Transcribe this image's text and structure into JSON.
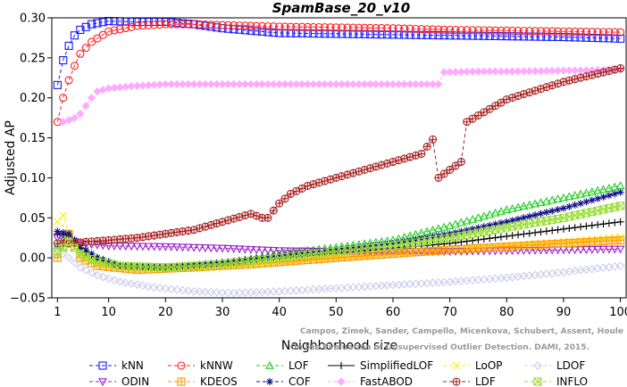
{
  "chart_data": {
    "type": "line",
    "title": "SpamBase_20_v10",
    "xlabel": "Neighborhood size",
    "ylabel": "Adjusted AP",
    "xlim": [
      0,
      101
    ],
    "ylim": [
      -0.05,
      0.3
    ],
    "xticks": [
      1,
      10,
      20,
      30,
      40,
      50,
      60,
      70,
      80,
      90,
      100
    ],
    "yticks": [
      -0.05,
      0.0,
      0.05,
      0.1,
      0.15,
      0.2,
      0.25,
      0.3
    ],
    "ytick_labels": [
      "−0.05",
      "0.00",
      "0.05",
      "0.10",
      "0.15",
      "0.20",
      "0.25",
      "0.30"
    ],
    "legend_position": "bottom",
    "watermark": [
      "Campos, Zimek, Sander, Campello, Micenkova, Schubert, Assent, Houle",
      "On the Evaluation of Unsupervised Outlier Detection. DAMI, 2015."
    ],
    "series": [
      {
        "name": "kNN",
        "color": "#1a1aff",
        "marker": "square",
        "dashed": true,
        "knots": [
          [
            1,
            0.216
          ],
          [
            2,
            0.247
          ],
          [
            3,
            0.265
          ],
          [
            4,
            0.278
          ],
          [
            5,
            0.285
          ],
          [
            7,
            0.292
          ],
          [
            10,
            0.296
          ],
          [
            15,
            0.295
          ],
          [
            20,
            0.295
          ],
          [
            25,
            0.292
          ],
          [
            30,
            0.287
          ],
          [
            40,
            0.281
          ],
          [
            50,
            0.28
          ],
          [
            60,
            0.279
          ],
          [
            70,
            0.278
          ],
          [
            80,
            0.277
          ],
          [
            90,
            0.276
          ],
          [
            100,
            0.274
          ]
        ]
      },
      {
        "name": "kNNW",
        "color": "#ff2020",
        "marker": "circle",
        "dashed": true,
        "knots": [
          [
            1,
            0.17
          ],
          [
            2,
            0.2
          ],
          [
            3,
            0.222
          ],
          [
            4,
            0.24
          ],
          [
            5,
            0.255
          ],
          [
            7,
            0.27
          ],
          [
            10,
            0.283
          ],
          [
            15,
            0.29
          ],
          [
            20,
            0.292
          ],
          [
            25,
            0.292
          ],
          [
            30,
            0.291
          ],
          [
            40,
            0.289
          ],
          [
            50,
            0.288
          ],
          [
            60,
            0.287
          ],
          [
            70,
            0.285
          ],
          [
            80,
            0.284
          ],
          [
            90,
            0.283
          ],
          [
            100,
            0.282
          ]
        ]
      },
      {
        "name": "LOF",
        "color": "#22cc22",
        "marker": "triangle-up",
        "dashed": true,
        "knots": [
          [
            1,
            0.015
          ],
          [
            3,
            0.03
          ],
          [
            5,
            0.01
          ],
          [
            8,
            0.0
          ],
          [
            12,
            -0.01
          ],
          [
            18,
            -0.012
          ],
          [
            25,
            -0.01
          ],
          [
            32,
            -0.005
          ],
          [
            40,
            0.005
          ],
          [
            50,
            0.013
          ],
          [
            60,
            0.022
          ],
          [
            70,
            0.04
          ],
          [
            80,
            0.06
          ],
          [
            90,
            0.075
          ],
          [
            100,
            0.09
          ]
        ]
      },
      {
        "name": "SimplifiedLOF",
        "color": "#000000",
        "marker": "plus",
        "dashed": false,
        "knots": [
          [
            1,
            0.03
          ],
          [
            3,
            0.028
          ],
          [
            5,
            0.012
          ],
          [
            8,
            -0.002
          ],
          [
            12,
            -0.01
          ],
          [
            20,
            -0.012
          ],
          [
            30,
            -0.007
          ],
          [
            40,
            0.0
          ],
          [
            50,
            0.006
          ],
          [
            60,
            0.012
          ],
          [
            70,
            0.018
          ],
          [
            80,
            0.027
          ],
          [
            90,
            0.036
          ],
          [
            100,
            0.045
          ]
        ]
      },
      {
        "name": "LoOP",
        "color": "#ffee00",
        "marker": "cross",
        "dashed": true,
        "knots": [
          [
            1,
            0.045
          ],
          [
            2,
            0.053
          ],
          [
            3,
            0.03
          ],
          [
            5,
            0.005
          ],
          [
            8,
            -0.008
          ],
          [
            15,
            -0.015
          ],
          [
            25,
            -0.012
          ],
          [
            35,
            -0.008
          ],
          [
            50,
            0.0
          ],
          [
            60,
            0.005
          ],
          [
            70,
            0.01
          ],
          [
            80,
            0.015
          ],
          [
            90,
            0.02
          ],
          [
            100,
            0.026
          ]
        ]
      },
      {
        "name": "LDOF",
        "color": "#ccccee",
        "marker": "diamond",
        "dashed": true,
        "knots": [
          [
            1,
            0.01
          ],
          [
            3,
            0.0
          ],
          [
            5,
            -0.012
          ],
          [
            8,
            -0.022
          ],
          [
            12,
            -0.03
          ],
          [
            18,
            -0.037
          ],
          [
            25,
            -0.042
          ],
          [
            32,
            -0.044
          ],
          [
            40,
            -0.042
          ],
          [
            50,
            -0.038
          ],
          [
            60,
            -0.034
          ],
          [
            70,
            -0.03
          ],
          [
            80,
            -0.025
          ],
          [
            90,
            -0.018
          ],
          [
            100,
            -0.01
          ]
        ]
      },
      {
        "name": "ODIN",
        "color": "#9920cc",
        "marker": "triangle-down",
        "dashed": true,
        "knots": [
          [
            1,
            0.025
          ],
          [
            3,
            0.022
          ],
          [
            5,
            0.018
          ],
          [
            10,
            0.015
          ],
          [
            20,
            0.014
          ],
          [
            30,
            0.012
          ],
          [
            40,
            0.009
          ],
          [
            50,
            0.008
          ],
          [
            60,
            0.008
          ],
          [
            70,
            0.008
          ],
          [
            80,
            0.009
          ],
          [
            90,
            0.01
          ],
          [
            100,
            0.011
          ]
        ]
      },
      {
        "name": "KDEOS",
        "color": "#ff9900",
        "marker": "boxplus",
        "dashed": true,
        "knots": [
          [
            1,
            0.0
          ],
          [
            3,
            0.03
          ],
          [
            5,
            0.0
          ],
          [
            8,
            -0.01
          ],
          [
            15,
            -0.015
          ],
          [
            25,
            -0.012
          ],
          [
            35,
            -0.008
          ],
          [
            50,
            0.0
          ],
          [
            60,
            0.005
          ],
          [
            70,
            0.01
          ],
          [
            80,
            0.014
          ],
          [
            90,
            0.018
          ],
          [
            100,
            0.022
          ]
        ]
      },
      {
        "name": "COF",
        "color": "#101088",
        "marker": "asterisk",
        "dashed": true,
        "knots": [
          [
            1,
            0.033
          ],
          [
            3,
            0.03
          ],
          [
            5,
            0.015
          ],
          [
            8,
            0.0
          ],
          [
            12,
            -0.01
          ],
          [
            20,
            -0.012
          ],
          [
            30,
            -0.006
          ],
          [
            40,
            0.002
          ],
          [
            50,
            0.01
          ],
          [
            60,
            0.018
          ],
          [
            70,
            0.03
          ],
          [
            80,
            0.045
          ],
          [
            90,
            0.062
          ],
          [
            100,
            0.082
          ]
        ]
      },
      {
        "name": "FastABOD",
        "color": "#ffaaff",
        "marker": "diamond-filled",
        "dashed": true,
        "knots": [
          [
            2,
            0.17
          ],
          [
            3,
            0.172
          ],
          [
            4,
            0.175
          ],
          [
            5,
            0.18
          ],
          [
            7,
            0.2
          ],
          [
            8,
            0.208
          ],
          [
            10,
            0.212
          ],
          [
            15,
            0.215
          ],
          [
            20,
            0.217
          ],
          [
            30,
            0.217
          ],
          [
            40,
            0.217
          ],
          [
            50,
            0.217
          ],
          [
            60,
            0.217
          ],
          [
            68,
            0.217
          ],
          [
            69,
            0.232
          ],
          [
            75,
            0.233
          ],
          [
            80,
            0.233
          ],
          [
            90,
            0.234
          ],
          [
            100,
            0.235
          ]
        ]
      },
      {
        "name": "LDF",
        "color": "#aa2222",
        "marker": "circle-plus",
        "dashed": true,
        "knots": [
          [
            1,
            0.018
          ],
          [
            3,
            0.018
          ],
          [
            6,
            0.02
          ],
          [
            10,
            0.022
          ],
          [
            15,
            0.025
          ],
          [
            20,
            0.03
          ],
          [
            25,
            0.035
          ],
          [
            30,
            0.045
          ],
          [
            35,
            0.055
          ],
          [
            37,
            0.05
          ],
          [
            38,
            0.05
          ],
          [
            40,
            0.068
          ],
          [
            42,
            0.08
          ],
          [
            45,
            0.09
          ],
          [
            50,
            0.1
          ],
          [
            55,
            0.11
          ],
          [
            60,
            0.12
          ],
          [
            65,
            0.13
          ],
          [
            67,
            0.148
          ],
          [
            68,
            0.1
          ],
          [
            70,
            0.11
          ],
          [
            72,
            0.12
          ],
          [
            73,
            0.17
          ],
          [
            80,
            0.198
          ],
          [
            90,
            0.22
          ],
          [
            100,
            0.237
          ]
        ]
      },
      {
        "name": "INFLO",
        "color": "#99dd33",
        "marker": "boxtimes",
        "dashed": true,
        "knots": [
          [
            1,
            0.005
          ],
          [
            3,
            0.02
          ],
          [
            5,
            0.005
          ],
          [
            8,
            -0.005
          ],
          [
            12,
            -0.01
          ],
          [
            20,
            -0.012
          ],
          [
            30,
            -0.008
          ],
          [
            40,
            0.0
          ],
          [
            50,
            0.008
          ],
          [
            60,
            0.015
          ],
          [
            70,
            0.025
          ],
          [
            80,
            0.038
          ],
          [
            90,
            0.05
          ],
          [
            100,
            0.065
          ]
        ]
      }
    ]
  }
}
